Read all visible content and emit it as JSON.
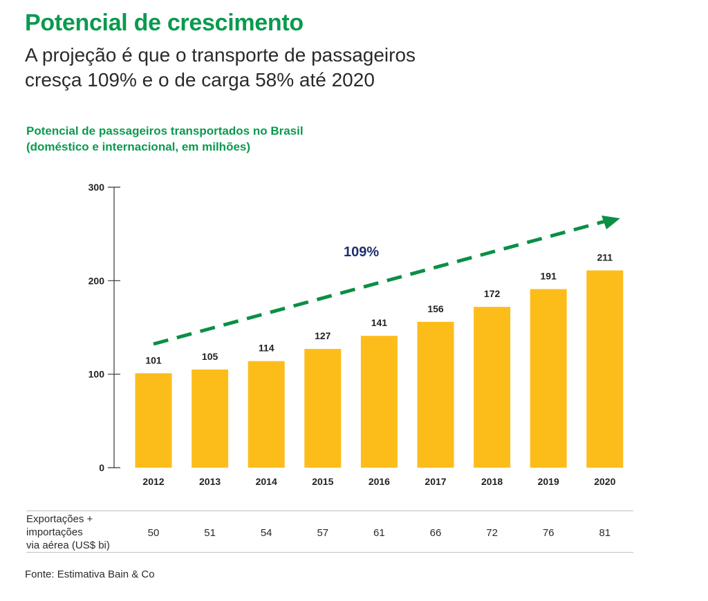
{
  "header": {
    "title": "Potencial de crescimento",
    "subtitle_line1": "A projeção é que o transporte de passageiros",
    "subtitle_line2": "cresça 109% e o de carga 58% até 2020"
  },
  "chart_data": {
    "type": "bar",
    "title": "Potencial de passageiros transportados no Brasil",
    "subtitle": "(doméstico e internacional, em milhões)",
    "categories": [
      "2012",
      "2013",
      "2014",
      "2015",
      "2016",
      "2017",
      "2018",
      "2019",
      "2020"
    ],
    "values": [
      101,
      105,
      114,
      127,
      141,
      156,
      172,
      191,
      211
    ],
    "ylim": [
      0,
      300
    ],
    "yticks": [
      0,
      100,
      200,
      300
    ],
    "xlabel": "",
    "ylabel": "",
    "grid": false,
    "legend": "none",
    "bar_color": "#fcbd1b",
    "annotation": {
      "label": "109%",
      "style": "dashed arrow",
      "color": "#0a8f45",
      "label_color": "#1f2e6e"
    }
  },
  "table": {
    "row_label_lines": [
      "Exportações +",
      "importações",
      "via aérea (US$ bi)"
    ],
    "values": [
      "50",
      "51",
      "54",
      "57",
      "61",
      "66",
      "72",
      "76",
      "81"
    ]
  },
  "source": "Fonte: Estimativa Bain & Co"
}
